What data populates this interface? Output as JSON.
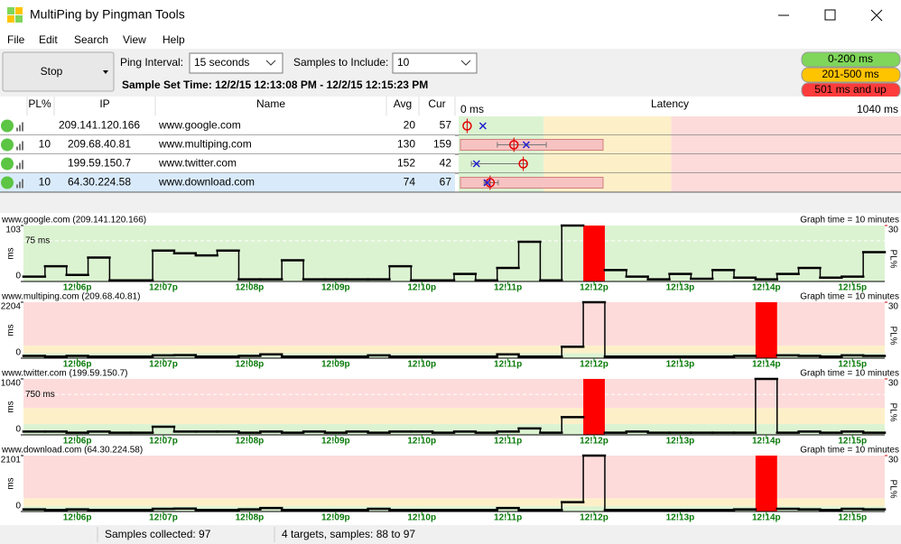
{
  "window": {
    "title": "MultiPing by Pingman Tools"
  },
  "menu": [
    "File",
    "Edit",
    "Search",
    "View",
    "Help"
  ],
  "toolbar": {
    "button": "Stop",
    "interval_label": "Ping Interval:",
    "interval": "15 seconds",
    "samples_label": "Samples to Include:",
    "samples": "10",
    "sample_set_time": "Sample Set Time: 12/2/15 12:13:08 PM - 12/2/15 12:15:23 PM"
  },
  "legend": [
    {
      "label": "0-200 ms",
      "color": "#7fd65a"
    },
    {
      "label": "201-500 ms",
      "color": "#ffc400"
    },
    {
      "label": "501 ms and up",
      "color": "#ff3c3c"
    }
  ],
  "thresholds": [
    200,
    500
  ],
  "table": {
    "headers": [
      "PL%",
      "IP",
      "Name",
      "Avg",
      "Cur",
      "Latency"
    ],
    "latency_axis": {
      "xlim": [
        0,
        1040
      ],
      "min_label": "0 ms",
      "max_label": "1040 ms"
    },
    "rows": [
      {
        "ip": "209.141.120.166",
        "name": "www.google.com",
        "avg": 20,
        "cur": 57
      },
      {
        "pl": 10,
        "ip": "209.68.40.81",
        "name": "www.multiping.com",
        "avg": 130,
        "cur": 159,
        "range": [
          91,
          206
        ]
      },
      {
        "ip": "199.59.150.7",
        "name": "www.twitter.com",
        "avg": 152,
        "cur": 42,
        "range": [
          30,
          160
        ]
      },
      {
        "pl": 10,
        "ip": "64.30.224.58",
        "name": "www.download.com",
        "avg": 74,
        "cur": 67,
        "range": [
          60,
          93
        ]
      }
    ]
  },
  "chart_data": [
    {
      "type": "step",
      "title": "www.google.com (209.141.120.166)",
      "subtitle": "Graph time = 10 minutes",
      "y_label": "ms",
      "y2_label": "PL%",
      "ylim": [
        0,
        103
      ],
      "yticks": [
        0,
        103
      ],
      "y2lim": [
        0,
        30
      ],
      "y2ticks": [
        30
      ],
      "reference": {
        "value": 75,
        "label": "75 ms"
      },
      "xlim": [
        0,
        40
      ],
      "xticks": [
        {
          "value": 2.5,
          "label": "12!06p"
        },
        {
          "value": 6.5,
          "label": "12!07p"
        },
        {
          "value": 10.5,
          "label": "12!08p"
        },
        {
          "value": 14.5,
          "label": "12!09p"
        },
        {
          "value": 18.5,
          "label": "12!10p"
        },
        {
          "value": 22.5,
          "label": "12!11p"
        },
        {
          "value": 26.5,
          "label": "12!12p"
        },
        {
          "value": 30.5,
          "label": "12!13p"
        },
        {
          "value": 34.5,
          "label": "12!14p"
        },
        {
          "value": 38.5,
          "label": "12!15p"
        }
      ],
      "values": [
        9,
        28,
        12,
        44,
        2,
        2,
        57,
        52,
        48,
        57,
        4,
        4,
        39,
        4,
        4,
        4,
        4,
        28,
        2,
        2,
        14,
        2,
        25,
        73,
        2,
        103,
        null,
        21,
        9,
        4,
        14,
        5,
        21,
        7,
        4,
        14,
        25,
        7,
        9,
        54
      ],
      "color": "#000000",
      "loss": {
        "x": [
          26
        ],
        "values": [
          30
        ],
        "color": "#ff0000",
        "axis": "y2"
      }
    },
    {
      "type": "step",
      "title": "www.multiping.com (209.68.40.81)",
      "subtitle": "Graph time = 10 minutes",
      "y_label": "ms",
      "y2_label": "PL%",
      "ylim": [
        0,
        2204
      ],
      "yticks": [
        0,
        2204
      ],
      "y2lim": [
        0,
        30
      ],
      "y2ticks": [
        30
      ],
      "xlim": [
        0,
        40
      ],
      "xticks": [
        {
          "value": 2.5,
          "label": "12!06p"
        },
        {
          "value": 6.5,
          "label": "12!07p"
        },
        {
          "value": 10.5,
          "label": "12!08p"
        },
        {
          "value": 14.5,
          "label": "12!09p"
        },
        {
          "value": 18.5,
          "label": "12!10p"
        },
        {
          "value": 22.5,
          "label": "12!11p"
        },
        {
          "value": 26.5,
          "label": "12!12p"
        },
        {
          "value": 30.5,
          "label": "12!13p"
        },
        {
          "value": 34.5,
          "label": "12!14p"
        },
        {
          "value": 38.5,
          "label": "12!15p"
        }
      ],
      "values": [
        90,
        60,
        90,
        60,
        60,
        60,
        110,
        120,
        60,
        60,
        90,
        150,
        60,
        60,
        60,
        60,
        110,
        60,
        60,
        60,
        60,
        60,
        150,
        60,
        60,
        450,
        2204,
        60,
        60,
        60,
        60,
        60,
        60,
        90,
        null,
        110,
        90,
        60,
        110,
        90
      ],
      "color": "#000000",
      "loss": {
        "x": [
          34
        ],
        "values": [
          30
        ],
        "color": "#ff0000",
        "axis": "y2"
      }
    },
    {
      "type": "step",
      "title": "www.twitter.com (199.59.150.7)",
      "subtitle": "Graph time = 10 minutes",
      "y_label": "ms",
      "y2_label": "PL%",
      "ylim": [
        0,
        1040
      ],
      "yticks": [
        0,
        1040
      ],
      "y2lim": [
        0,
        30
      ],
      "y2ticks": [
        30
      ],
      "reference": {
        "value": 750,
        "label": "750 ms"
      },
      "xlim": [
        0,
        40
      ],
      "xticks": [
        {
          "value": 2.5,
          "label": "12!06p"
        },
        {
          "value": 6.5,
          "label": "12!07p"
        },
        {
          "value": 10.5,
          "label": "12!08p"
        },
        {
          "value": 14.5,
          "label": "12!09p"
        },
        {
          "value": 18.5,
          "label": "12!10p"
        },
        {
          "value": 22.5,
          "label": "12!11p"
        },
        {
          "value": 26.5,
          "label": "12!12p"
        },
        {
          "value": 30.5,
          "label": "12!13p"
        },
        {
          "value": 34.5,
          "label": "12!14p"
        },
        {
          "value": 38.5,
          "label": "12!15p"
        }
      ],
      "values": [
        60,
        60,
        40,
        60,
        40,
        40,
        150,
        60,
        60,
        60,
        40,
        60,
        40,
        60,
        40,
        60,
        40,
        60,
        60,
        40,
        60,
        40,
        60,
        120,
        40,
        330,
        null,
        40,
        60,
        40,
        40,
        40,
        40,
        40,
        1040,
        40,
        60,
        40,
        60,
        40
      ],
      "color": "#000000",
      "loss": {
        "x": [
          26
        ],
        "values": [
          30
        ],
        "color": "#ff0000",
        "axis": "y2"
      }
    },
    {
      "type": "step",
      "title": "www.download.com (64.30.224.58)",
      "subtitle": "Graph time = 10 minutes",
      "y_label": "ms",
      "y2_label": "PL%",
      "ylim": [
        0,
        2101
      ],
      "yticks": [
        0,
        2101
      ],
      "y2lim": [
        0,
        30
      ],
      "y2ticks": [
        30
      ],
      "xlim": [
        0,
        40
      ],
      "xticks": [
        {
          "value": 2.5,
          "label": "12!06p"
        },
        {
          "value": 6.5,
          "label": "12!07p"
        },
        {
          "value": 10.5,
          "label": "12!08p"
        },
        {
          "value": 14.5,
          "label": "12!09p"
        },
        {
          "value": 18.5,
          "label": "12!10p"
        },
        {
          "value": 22.5,
          "label": "12!11p"
        },
        {
          "value": 26.5,
          "label": "12!12p"
        },
        {
          "value": 30.5,
          "label": "12!13p"
        },
        {
          "value": 34.5,
          "label": "12!14p"
        },
        {
          "value": 38.5,
          "label": "12!15p"
        }
      ],
      "values": [
        80,
        60,
        80,
        60,
        60,
        60,
        100,
        110,
        60,
        60,
        80,
        130,
        60,
        60,
        60,
        60,
        100,
        60,
        60,
        60,
        60,
        60,
        130,
        60,
        60,
        350,
        2101,
        60,
        60,
        60,
        60,
        60,
        60,
        80,
        null,
        100,
        80,
        60,
        100,
        80
      ],
      "color": "#000000",
      "loss": {
        "x": [
          34
        ],
        "values": [
          30
        ],
        "color": "#ff0000",
        "axis": "y2"
      }
    }
  ],
  "status": [
    "Samples collected: 97",
    "4 targets, samples: 88 to 97"
  ]
}
